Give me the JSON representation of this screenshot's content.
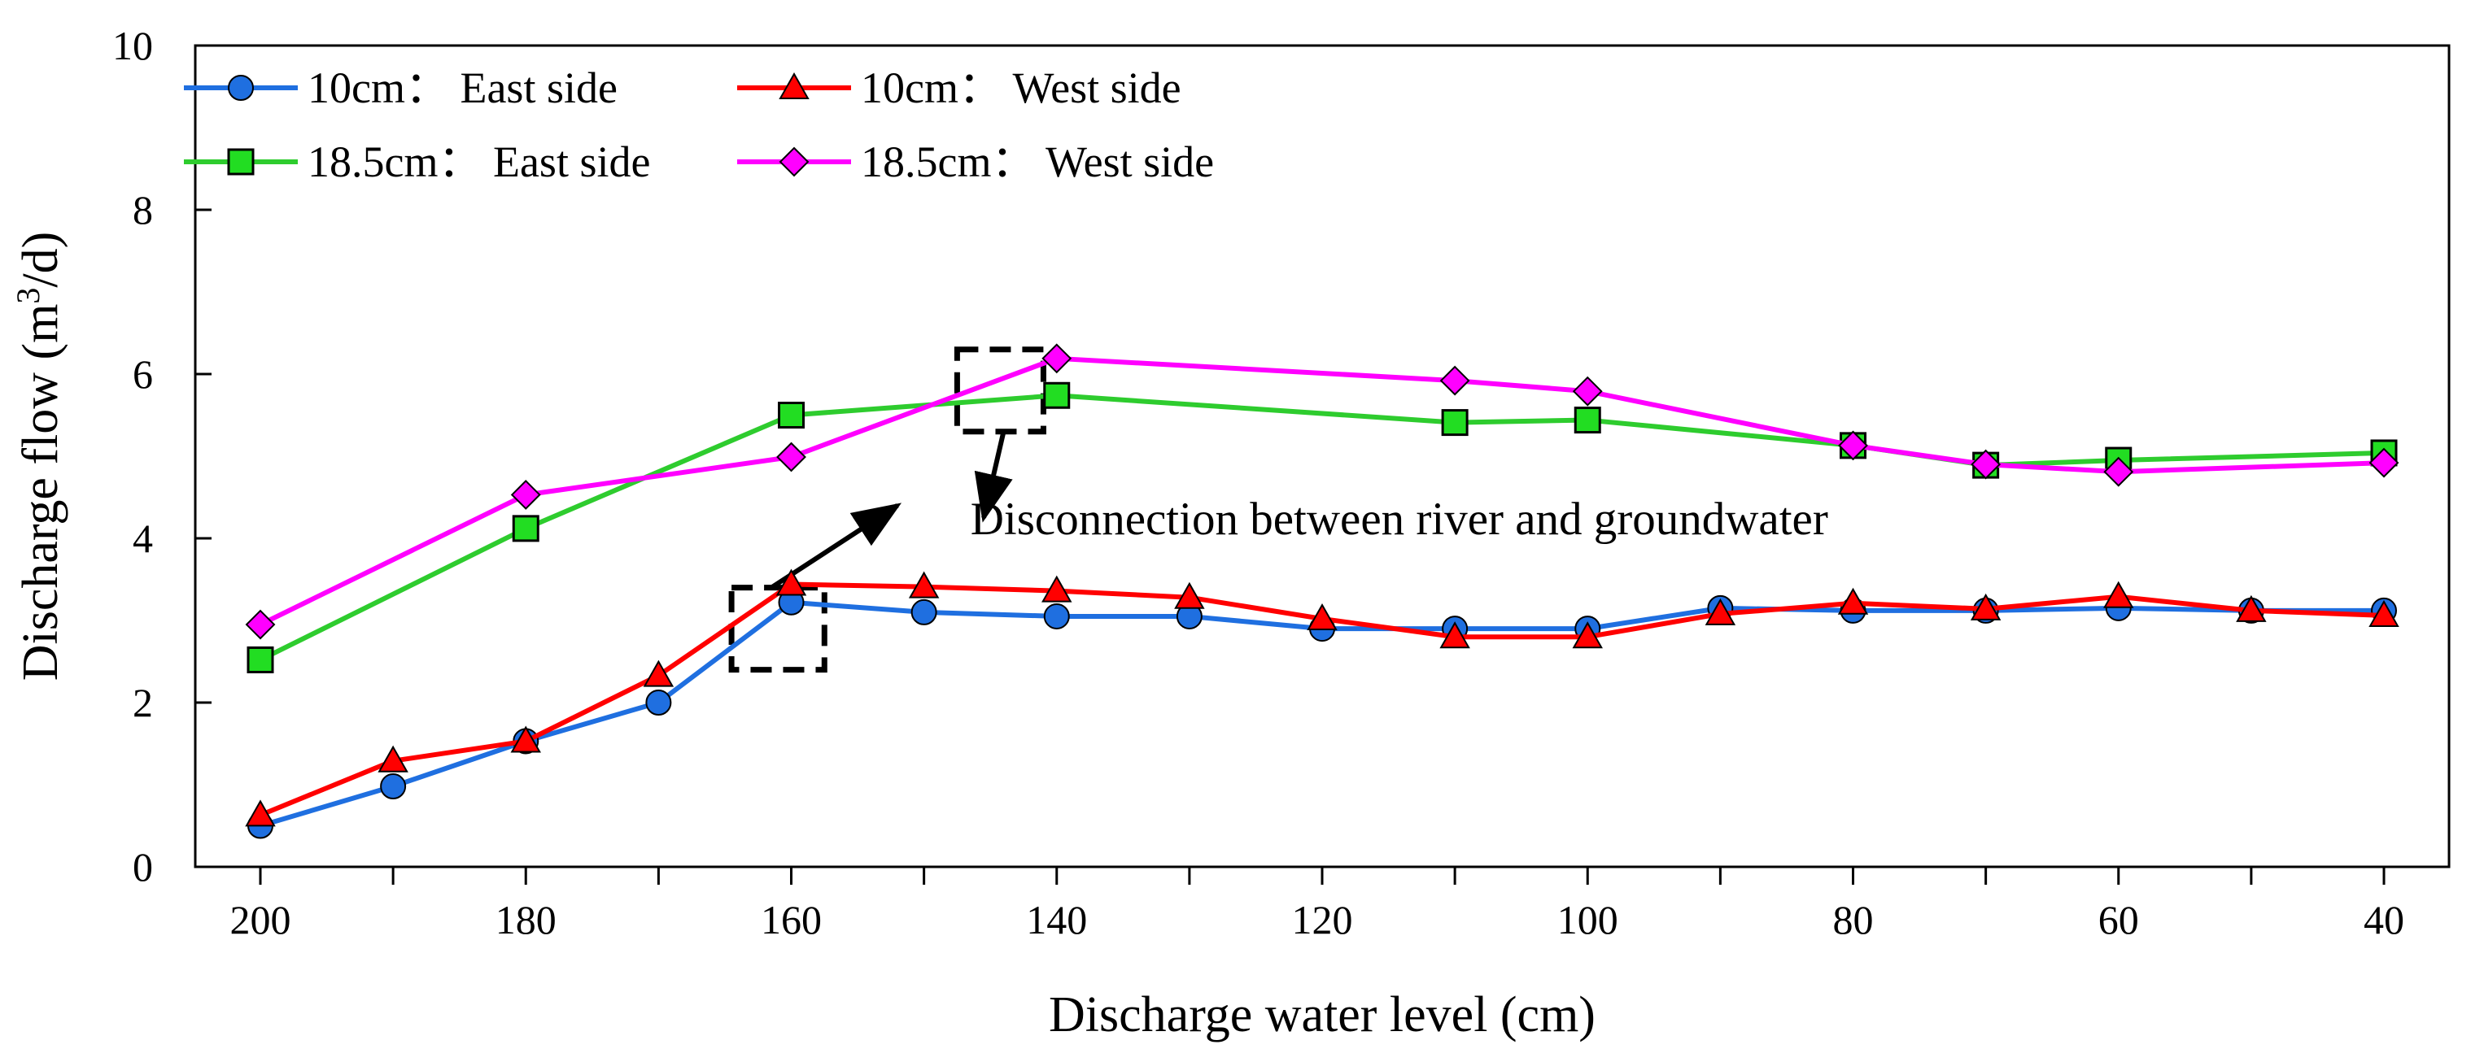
{
  "chart_data": {
    "type": "line",
    "title": "",
    "xlabel": "Discharge water level (cm)",
    "ylabel_main": "Discharge flow (m",
    "ylabel_sup": "3",
    "ylabel_tail": "/d)",
    "xlim": [
      200,
      40
    ],
    "ylim": [
      0,
      10
    ],
    "xticks": [
      200,
      180,
      160,
      140,
      120,
      100,
      80,
      60,
      40
    ],
    "yticks": [
      0,
      2,
      4,
      6,
      8,
      10
    ],
    "legend_location": "top-left",
    "grid": false,
    "series": [
      {
        "name": "10cm： East side",
        "color": "#1f6fe0",
        "marker": "circle",
        "marker_fill": "#1f6fe0",
        "x": [
          200,
          190,
          180,
          170,
          160,
          150,
          140,
          130,
          120,
          110,
          100,
          90,
          80,
          70,
          60,
          50,
          40
        ],
        "y": [
          0.5,
          0.98,
          1.53,
          2.0,
          3.22,
          3.1,
          3.05,
          3.05,
          2.9,
          2.9,
          2.9,
          3.15,
          3.12,
          3.12,
          3.15,
          3.12,
          3.12
        ]
      },
      {
        "name": "10cm： West side",
        "color": "#ff0000",
        "marker": "triangle",
        "marker_fill": "#ff0000",
        "x": [
          200,
          190,
          180,
          170,
          160,
          150,
          140,
          130,
          120,
          110,
          100,
          90,
          80,
          70,
          60,
          50,
          40
        ],
        "y": [
          0.63,
          1.29,
          1.53,
          2.33,
          3.44,
          3.41,
          3.36,
          3.28,
          3.02,
          2.8,
          2.8,
          3.08,
          3.21,
          3.14,
          3.29,
          3.12,
          3.06
        ]
      },
      {
        "name": "18.5cm： East side",
        "color": "#2ecc2e",
        "marker": "square",
        "marker_fill": "#22dd22",
        "x": [
          200,
          180,
          160,
          140,
          110,
          100,
          80,
          70,
          60,
          40
        ],
        "y": [
          2.52,
          4.12,
          5.5,
          5.74,
          5.41,
          5.44,
          5.13,
          4.89,
          4.95,
          5.04
        ]
      },
      {
        "name": "18.5cm： West side",
        "color": "#ff00ff",
        "marker": "diamond",
        "marker_fill": "#ff00ff",
        "x": [
          200,
          180,
          160,
          140,
          110,
          100,
          80,
          70,
          60,
          40
        ],
        "y": [
          2.95,
          4.53,
          4.99,
          6.19,
          5.92,
          5.79,
          5.13,
          4.9,
          4.81,
          4.92
        ]
      }
    ],
    "annotations": [
      {
        "text": "Disconnection between river and groundwater",
        "text_at": [
          146.5,
          4.05
        ],
        "boxes": [
          {
            "x_range": [
              164.5,
              157.5
            ],
            "y_range": [
              2.4,
              3.4
            ]
          },
          {
            "x_range": [
              147.5,
              141.0
            ],
            "y_range": [
              5.3,
              6.3
            ]
          }
        ],
        "arrows": [
          {
            "from": [
              161.5,
              3.4
            ],
            "to": [
              152.0,
              4.4
            ]
          },
          {
            "from": [
              144.0,
              5.3
            ],
            "to": [
              145.5,
              4.25
            ]
          }
        ]
      }
    ]
  }
}
